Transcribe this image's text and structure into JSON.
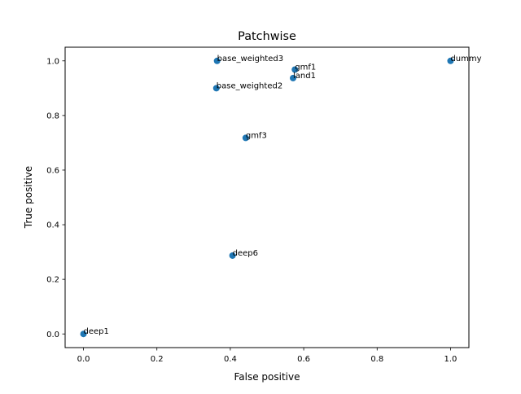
{
  "chart_data": {
    "type": "scatter",
    "title": "Patchwise",
    "xlabel": "False positive",
    "ylabel": "True positive",
    "xlim": [
      -0.05,
      1.05
    ],
    "ylim": [
      -0.05,
      1.05
    ],
    "xticks": [
      0.0,
      0.2,
      0.4,
      0.6,
      0.8,
      1.0
    ],
    "yticks": [
      0.0,
      0.2,
      0.4,
      0.6,
      0.8,
      1.0
    ],
    "xtick_labels": [
      "0.0",
      "0.2",
      "0.4",
      "0.6",
      "0.8",
      "1.0"
    ],
    "ytick_labels": [
      "0.0",
      "0.2",
      "0.4",
      "0.6",
      "0.8",
      "1.0"
    ],
    "grid": false,
    "marker_color": "#1f77b4",
    "points": [
      {
        "label": "base_weighted3",
        "x": 0.364,
        "y": 1.0
      },
      {
        "label": "gmf1",
        "x": 0.576,
        "y": 0.968
      },
      {
        "label": "land1",
        "x": 0.571,
        "y": 0.937
      },
      {
        "label": "dummy",
        "x": 1.0,
        "y": 1.0
      },
      {
        "label": "base_weighted2",
        "x": 0.362,
        "y": 0.9
      },
      {
        "label": "gmf3",
        "x": 0.442,
        "y": 0.718
      },
      {
        "label": "deep6",
        "x": 0.406,
        "y": 0.287
      },
      {
        "label": "deep1",
        "x": 0.0,
        "y": 0.0
      }
    ]
  }
}
